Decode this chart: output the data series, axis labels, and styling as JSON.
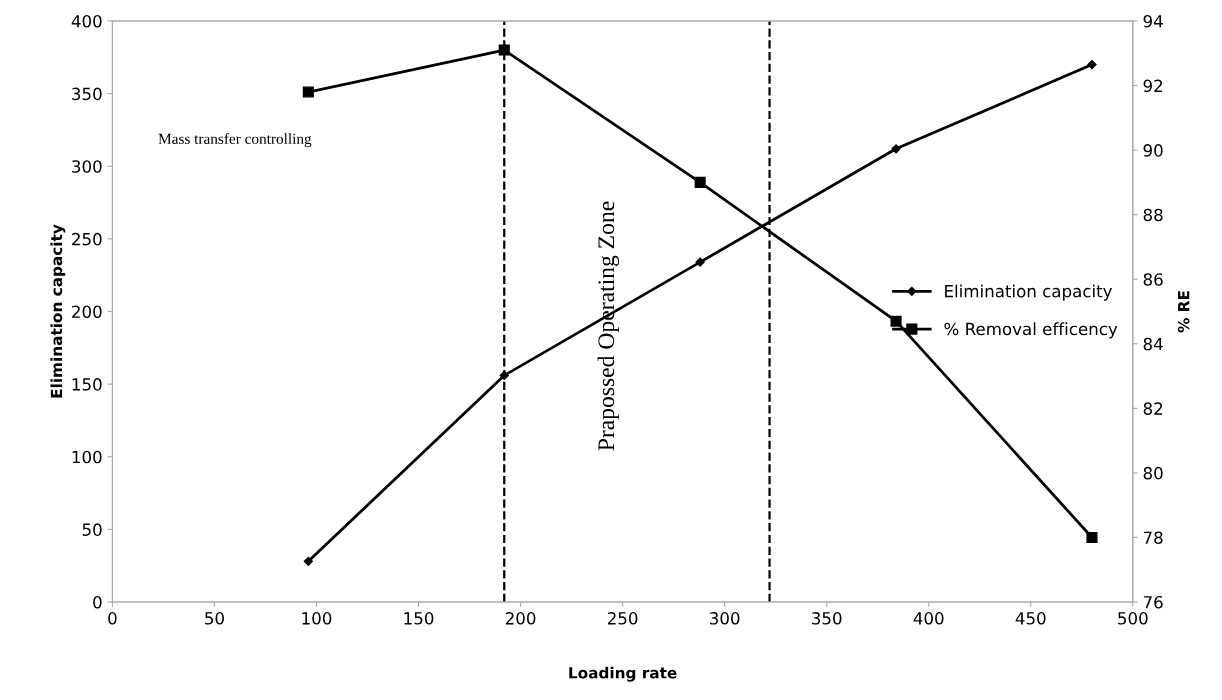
{
  "chart_data": {
    "type": "line",
    "xlabel": "Loading rate",
    "ylabel": "Elimination capacity",
    "y2label": "% RE",
    "x": [
      96,
      192,
      288,
      384,
      480
    ],
    "series": [
      {
        "name": "Elimination capacity",
        "color": "#000000",
        "marker": "diamond",
        "values": [
          28,
          156,
          234,
          312,
          370
        ]
      },
      {
        "name": "% Removal efficency",
        "color": "#000000",
        "marker": "square",
        "axis": "y2",
        "values": [
          91.8,
          93.1,
          89.0,
          84.7,
          78.0
        ]
      }
    ],
    "xlim": [
      0,
      500
    ],
    "xticks": [
      0,
      50,
      100,
      150,
      200,
      250,
      300,
      350,
      400,
      450,
      500
    ],
    "ylim": [
      0,
      400
    ],
    "yticks": [
      0,
      50,
      100,
      150,
      200,
      250,
      300,
      350,
      400
    ],
    "y2lim": [
      76,
      94
    ],
    "y2ticks": [
      76,
      78,
      80,
      82,
      84,
      86,
      88,
      90,
      92,
      94
    ],
    "ref_lines": [
      {
        "axis": "x",
        "value": 192,
        "color": "#000000",
        "line_style": "dashed"
      },
      {
        "axis": "x",
        "value": 322,
        "color": "#000000",
        "line_style": "dashed"
      }
    ],
    "annotations": [
      "Mass transfer controlling",
      "Prapossed Operating Zone"
    ],
    "grid": false,
    "legend": "right",
    "line_style": "solid"
  }
}
